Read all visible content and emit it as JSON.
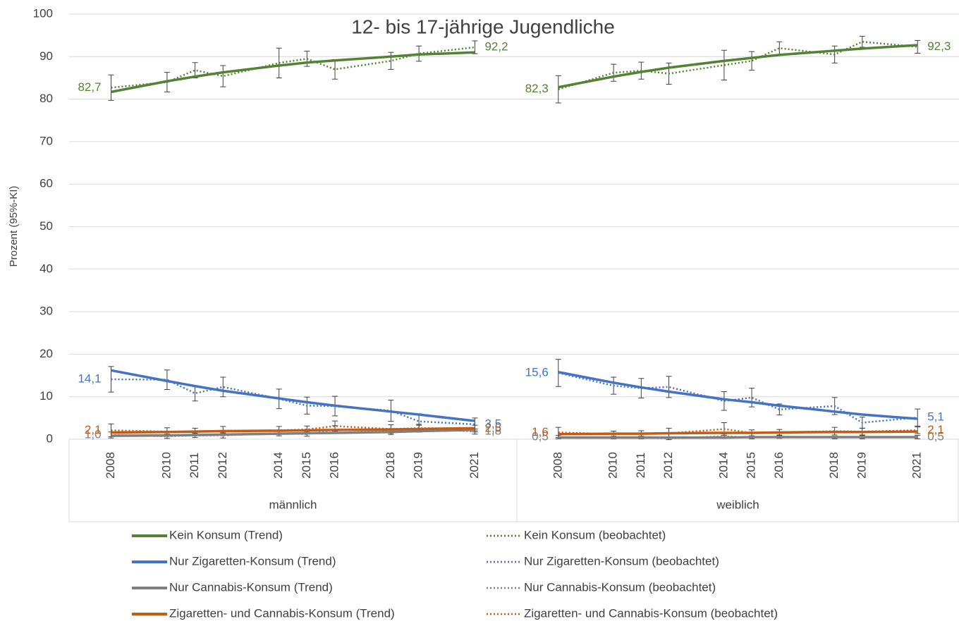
{
  "chart_data": {
    "type": "line",
    "title": "12- bis 17-jährige Jugendliche",
    "y_label": "Prozent (95%-KI)",
    "groups": [
      "männlich",
      "weiblich"
    ],
    "x": [
      2008,
      2010,
      2011,
      2012,
      2014,
      2015,
      2016,
      2018,
      2019,
      2021
    ],
    "xlim": [
      2006.5,
      2022.5
    ],
    "ylim": [
      0,
      100
    ],
    "yticks": [
      0,
      10,
      20,
      30,
      40,
      50,
      60,
      70,
      80,
      90,
      100
    ],
    "grid": true,
    "series": [
      {
        "name": "Kein Konsum (Trend)",
        "color": "#548235",
        "dashed": false,
        "values": [
          [
            81.7,
            84.2,
            85.3,
            86.3,
            87.9,
            88.6,
            89.1,
            90.0,
            90.5,
            91.0
          ],
          [
            82.8,
            85.3,
            86.4,
            87.4,
            89.0,
            89.7,
            90.4,
            91.4,
            91.9,
            92.7
          ]
        ]
      },
      {
        "name": "Nur Zigaretten-Konsum (Trend)",
        "color": "#4472c4",
        "dashed": false,
        "values": [
          [
            16.2,
            13.7,
            12.5,
            11.4,
            9.6,
            8.7,
            7.9,
            6.5,
            5.8,
            4.3
          ],
          [
            15.8,
            13.3,
            12.2,
            11.2,
            9.4,
            8.7,
            7.9,
            6.5,
            5.8,
            4.8
          ]
        ]
      },
      {
        "name": "Nur Cannabis-Konsum (Trend)",
        "color": "#7f7f7f",
        "dashed": false,
        "values": [
          [
            0.8,
            0.9,
            1.0,
            1.1,
            1.3,
            1.4,
            1.5,
            1.7,
            1.9,
            2.2
          ],
          [
            0.4,
            0.4,
            0.4,
            0.4,
            0.4,
            0.5,
            0.5,
            0.5,
            0.5,
            0.5
          ]
        ]
      },
      {
        "name": "Zigaretten- und Cannabis-Konsum (Trend)",
        "color": "#c55a11",
        "dashed": false,
        "values": [
          [
            1.6,
            1.7,
            1.8,
            1.9,
            2.0,
            2.1,
            2.2,
            2.3,
            2.4,
            2.6
          ],
          [
            1.2,
            1.3,
            1.3,
            1.4,
            1.5,
            1.5,
            1.6,
            1.7,
            1.7,
            1.8
          ]
        ]
      },
      {
        "name": "Kein Konsum (beobachtet)",
        "color": "#548235",
        "dashed": true,
        "values": [
          [
            82.7,
            84.0,
            86.8,
            85.4,
            88.5,
            89.5,
            87.0,
            89.0,
            90.7,
            92.2
          ],
          [
            82.3,
            86.2,
            86.7,
            86.0,
            88.0,
            89.0,
            92.0,
            90.5,
            93.5,
            92.3
          ]
        ],
        "errors": [
          [
            3.0,
            2.3,
            1.8,
            2.5,
            3.5,
            1.8,
            2.3,
            2.0,
            1.8,
            1.5
          ],
          [
            3.2,
            2.0,
            2.0,
            2.5,
            3.5,
            2.2,
            1.5,
            2.0,
            1.3,
            1.5
          ]
        ],
        "value_labels": [
          [
            "82,7",
            null,
            null,
            null,
            null,
            null,
            null,
            null,
            null,
            "92,2"
          ],
          [
            "82,3",
            null,
            null,
            null,
            null,
            null,
            null,
            null,
            null,
            "92,3"
          ]
        ]
      },
      {
        "name": "Nur Zigaretten-Konsum (beobachtet)",
        "color": "#4472c4",
        "dashed": true,
        "values": [
          [
            14.1,
            14.0,
            10.8,
            12.3,
            9.5,
            7.9,
            7.8,
            6.7,
            4.2,
            3.5
          ],
          [
            15.6,
            12.6,
            12.0,
            12.3,
            9.0,
            9.8,
            7.0,
            7.8,
            3.9,
            5.1
          ]
        ],
        "errors": [
          [
            3.0,
            2.3,
            1.8,
            2.3,
            2.3,
            2.0,
            2.3,
            2.5,
            1.8,
            1.5
          ],
          [
            3.2,
            2.0,
            2.3,
            2.5,
            2.2,
            2.2,
            1.3,
            2.0,
            1.3,
            2.0
          ]
        ],
        "value_labels": [
          [
            "14,1",
            null,
            null,
            null,
            null,
            null,
            null,
            null,
            null,
            "3,5"
          ],
          [
            "15,6",
            null,
            null,
            null,
            null,
            null,
            null,
            null,
            null,
            "5,1"
          ]
        ]
      },
      {
        "name": "Nur Cannabis-Konsum (beobachtet)",
        "color": "#7f7f7f",
        "dashed": true,
        "values": [
          [
            1.0,
            0.7,
            0.9,
            0.9,
            1.4,
            1.2,
            2.3,
            1.8,
            2.5,
            1.8
          ],
          [
            0.5,
            0.4,
            0.4,
            0.2,
            0.7,
            0.4,
            0.6,
            0.4,
            0.5,
            0.5
          ]
        ],
        "errors": [
          [
            0.7,
            0.5,
            0.5,
            0.6,
            0.6,
            0.5,
            0.9,
            0.7,
            0.8,
            0.6
          ],
          [
            0.4,
            0.3,
            0.3,
            0.3,
            0.5,
            0.3,
            0.4,
            0.3,
            0.4,
            0.4
          ]
        ],
        "value_labels": [
          [
            "1,0",
            null,
            null,
            null,
            null,
            null,
            null,
            null,
            null,
            "1,8"
          ],
          [
            "0,5",
            null,
            null,
            null,
            null,
            null,
            null,
            null,
            null,
            "0,5"
          ]
        ]
      },
      {
        "name": "Zigaretten- und Cannabis-Konsum (beobachtet)",
        "color": "#c55a11",
        "dashed": true,
        "values": [
          [
            2.1,
            1.8,
            1.8,
            2.0,
            2.1,
            2.3,
            3.1,
            2.4,
            2.6,
            2.5
          ],
          [
            1.6,
            1.2,
            1.3,
            1.4,
            2.4,
            1.5,
            1.6,
            1.9,
            1.8,
            2.1
          ]
        ],
        "errors": [
          [
            1.5,
            0.9,
            0.8,
            1.0,
            0.9,
            0.8,
            1.2,
            1.0,
            0.9,
            0.8
          ],
          [
            1.2,
            0.7,
            0.7,
            1.2,
            1.5,
            0.7,
            0.7,
            0.9,
            0.8,
            0.8
          ]
        ],
        "value_labels": [
          [
            "2,1",
            null,
            null,
            null,
            null,
            null,
            null,
            null,
            null,
            "2,5"
          ],
          [
            "1,6",
            null,
            null,
            null,
            null,
            null,
            null,
            null,
            null,
            "2,1"
          ]
        ]
      }
    ]
  }
}
